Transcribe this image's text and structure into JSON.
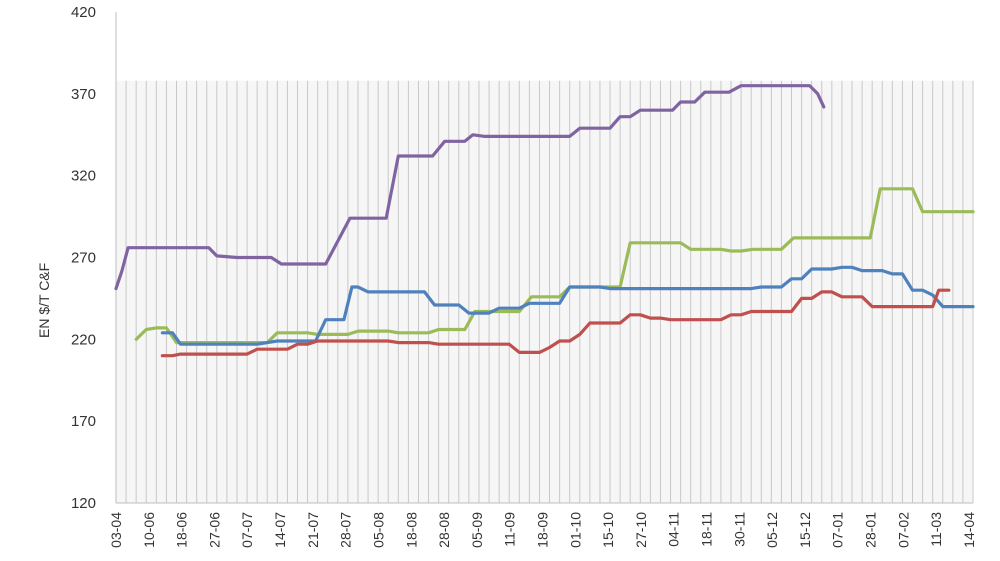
{
  "chart_data": {
    "type": "line",
    "title": "",
    "xlabel": "",
    "ylabel": "EN $/T C&F",
    "ylim": [
      120,
      420
    ],
    "yticks": [
      "120",
      "170",
      "220",
      "270",
      "320",
      "370",
      "420"
    ],
    "grid": "vertical",
    "legend": "none",
    "x_tick_labels": [
      "03-04",
      "10-06",
      "18-06",
      "27-06",
      "07-07",
      "14-07",
      "21-07",
      "28-07",
      "05-08",
      "18-08",
      "28-08",
      "05-09",
      "11-09",
      "18-09",
      "01-10",
      "15-10",
      "27-10",
      "04-11",
      "18-11",
      "30-11",
      "05-12",
      "15-12",
      "07-01",
      "28-01",
      "07-02",
      "11-03",
      "14-04"
    ],
    "series": [
      {
        "color": "#8064a2",
        "points": [
          [
            0,
            251
          ],
          [
            0.3,
            262
          ],
          [
            0.6,
            276
          ],
          [
            1.5,
            276
          ],
          [
            2,
            276
          ],
          [
            3,
            276
          ],
          [
            4,
            276
          ],
          [
            4.6,
            276
          ],
          [
            5,
            271
          ],
          [
            6,
            270
          ],
          [
            7,
            270
          ],
          [
            7.7,
            270
          ],
          [
            8.2,
            266
          ],
          [
            9,
            266
          ],
          [
            10,
            266
          ],
          [
            10.4,
            266
          ],
          [
            11,
            280
          ],
          [
            11.6,
            294
          ],
          [
            12.4,
            294
          ],
          [
            13,
            294
          ],
          [
            13.4,
            294
          ],
          [
            14,
            332
          ],
          [
            15,
            332
          ],
          [
            15.7,
            332
          ],
          [
            16.3,
            341
          ],
          [
            17.3,
            341
          ],
          [
            17.7,
            345
          ],
          [
            18.3,
            344
          ],
          [
            19.5,
            344
          ],
          [
            20.5,
            344
          ],
          [
            21.5,
            344
          ],
          [
            22.5,
            344
          ],
          [
            23,
            349
          ],
          [
            24,
            349
          ],
          [
            24.5,
            349
          ],
          [
            25,
            356
          ],
          [
            25.5,
            356
          ],
          [
            26,
            360
          ],
          [
            27,
            360
          ],
          [
            27.6,
            360
          ],
          [
            28,
            365
          ],
          [
            28.7,
            365
          ],
          [
            29.2,
            371
          ],
          [
            30,
            371
          ],
          [
            30.4,
            371
          ],
          [
            31,
            375
          ],
          [
            32,
            375
          ],
          [
            33,
            375
          ],
          [
            34,
            375
          ],
          [
            34.4,
            375
          ],
          [
            34.8,
            370
          ],
          [
            35.1,
            362
          ]
        ]
      },
      {
        "color": "#9bbb59",
        "points": [
          [
            1,
            220
          ],
          [
            1.5,
            226
          ],
          [
            2,
            227
          ],
          [
            2.5,
            227
          ],
          [
            3,
            218
          ],
          [
            3.5,
            218
          ],
          [
            4,
            218
          ],
          [
            5,
            218
          ],
          [
            6,
            218
          ],
          [
            7,
            218
          ],
          [
            7.5,
            218
          ],
          [
            8,
            224
          ],
          [
            9,
            224
          ],
          [
            9.5,
            224
          ],
          [
            10,
            223
          ],
          [
            11,
            223
          ],
          [
            11.5,
            223
          ],
          [
            12,
            225
          ],
          [
            13,
            225
          ],
          [
            13.5,
            225
          ],
          [
            14,
            224
          ],
          [
            15,
            224
          ],
          [
            15.5,
            224
          ],
          [
            16,
            226
          ],
          [
            17,
            226
          ],
          [
            17.3,
            226
          ],
          [
            17.8,
            237
          ],
          [
            18.5,
            237
          ],
          [
            19.5,
            237
          ],
          [
            20,
            237
          ],
          [
            20.6,
            246
          ],
          [
            21.5,
            246
          ],
          [
            22,
            246
          ],
          [
            22.5,
            252
          ],
          [
            23.5,
            252
          ],
          [
            24.5,
            252
          ],
          [
            25,
            252
          ],
          [
            25.5,
            279
          ],
          [
            26.5,
            279
          ],
          [
            27.5,
            279
          ],
          [
            28,
            279
          ],
          [
            28.5,
            275
          ],
          [
            29.5,
            275
          ],
          [
            30,
            275
          ],
          [
            30.5,
            274
          ],
          [
            31,
            274
          ],
          [
            31.6,
            275
          ],
          [
            32.5,
            275
          ],
          [
            33,
            275
          ],
          [
            33.6,
            282
          ],
          [
            34.5,
            282
          ],
          [
            35.5,
            282
          ],
          [
            36.5,
            282
          ],
          [
            37,
            282
          ],
          [
            37.4,
            282
          ],
          [
            37.9,
            312
          ],
          [
            39,
            312
          ],
          [
            39.5,
            312
          ],
          [
            40,
            298
          ],
          [
            41,
            298
          ],
          [
            42,
            298
          ],
          [
            42.5,
            298
          ]
        ]
      },
      {
        "color": "#4f81bd",
        "points": [
          [
            2.3,
            224
          ],
          [
            2.8,
            224
          ],
          [
            3.2,
            217
          ],
          [
            4,
            217
          ],
          [
            5,
            217
          ],
          [
            6,
            217
          ],
          [
            7,
            217
          ],
          [
            8,
            219
          ],
          [
            9,
            219
          ],
          [
            9.5,
            219
          ],
          [
            9.9,
            219
          ],
          [
            10.4,
            232
          ],
          [
            11.3,
            232
          ],
          [
            11.7,
            252
          ],
          [
            12,
            252
          ],
          [
            12.5,
            249
          ],
          [
            13.5,
            249
          ],
          [
            14.5,
            249
          ],
          [
            15.3,
            249
          ],
          [
            15.8,
            241
          ],
          [
            16.5,
            241
          ],
          [
            17,
            241
          ],
          [
            17.5,
            236
          ],
          [
            18.5,
            236
          ],
          [
            19,
            239
          ],
          [
            20,
            239
          ],
          [
            20.5,
            242
          ],
          [
            21.5,
            242
          ],
          [
            22,
            242
          ],
          [
            22.5,
            252
          ],
          [
            23.5,
            252
          ],
          [
            24,
            252
          ],
          [
            24.5,
            251
          ],
          [
            25.5,
            251
          ],
          [
            26.5,
            251
          ],
          [
            27.5,
            251
          ],
          [
            28.5,
            251
          ],
          [
            29.5,
            251
          ],
          [
            30.5,
            251
          ],
          [
            31.5,
            251
          ],
          [
            32,
            252
          ],
          [
            33,
            252
          ],
          [
            33.5,
            257
          ],
          [
            34,
            257
          ],
          [
            34.5,
            263
          ],
          [
            35.5,
            263
          ],
          [
            36,
            264
          ],
          [
            36.5,
            264
          ],
          [
            37,
            262
          ],
          [
            38,
            262
          ],
          [
            38.5,
            260
          ],
          [
            39,
            260
          ],
          [
            39.5,
            250
          ],
          [
            40,
            250
          ],
          [
            40.5,
            247
          ],
          [
            41,
            240
          ],
          [
            41.5,
            240
          ],
          [
            42,
            240
          ],
          [
            42.5,
            240
          ]
        ]
      },
      {
        "color": "#c0504d",
        "points": [
          [
            2.3,
            210
          ],
          [
            2.8,
            210
          ],
          [
            3.2,
            211
          ],
          [
            4,
            211
          ],
          [
            5,
            211
          ],
          [
            6,
            211
          ],
          [
            6.5,
            211
          ],
          [
            7,
            214
          ],
          [
            8,
            214
          ],
          [
            8.5,
            214
          ],
          [
            9,
            217
          ],
          [
            9.5,
            217
          ],
          [
            10,
            219
          ],
          [
            11,
            219
          ],
          [
            12,
            219
          ],
          [
            13,
            219
          ],
          [
            13.5,
            219
          ],
          [
            14,
            218
          ],
          [
            15,
            218
          ],
          [
            15.5,
            218
          ],
          [
            16,
            217
          ],
          [
            17,
            217
          ],
          [
            18,
            217
          ],
          [
            19,
            217
          ],
          [
            19.5,
            217
          ],
          [
            20,
            212
          ],
          [
            21,
            212
          ],
          [
            21.5,
            215
          ],
          [
            22,
            219
          ],
          [
            22.5,
            219
          ],
          [
            23,
            223
          ],
          [
            23.5,
            230
          ],
          [
            24.5,
            230
          ],
          [
            25,
            230
          ],
          [
            25.5,
            235
          ],
          [
            26,
            235
          ],
          [
            26.5,
            233
          ],
          [
            27,
            233
          ],
          [
            27.5,
            232
          ],
          [
            28.5,
            232
          ],
          [
            29.5,
            232
          ],
          [
            30,
            232
          ],
          [
            30.5,
            235
          ],
          [
            31,
            235
          ],
          [
            31.5,
            237
          ],
          [
            32,
            237
          ],
          [
            33,
            237
          ],
          [
            33.5,
            237
          ],
          [
            34,
            245
          ],
          [
            34.5,
            245
          ],
          [
            35,
            249
          ],
          [
            35.5,
            249
          ],
          [
            36,
            246
          ],
          [
            37,
            246
          ],
          [
            37.5,
            240
          ],
          [
            38.5,
            240
          ],
          [
            39.5,
            240
          ],
          [
            40,
            240
          ],
          [
            40.5,
            240
          ],
          [
            40.8,
            250
          ],
          [
            41.3,
            250
          ]
        ]
      }
    ]
  }
}
